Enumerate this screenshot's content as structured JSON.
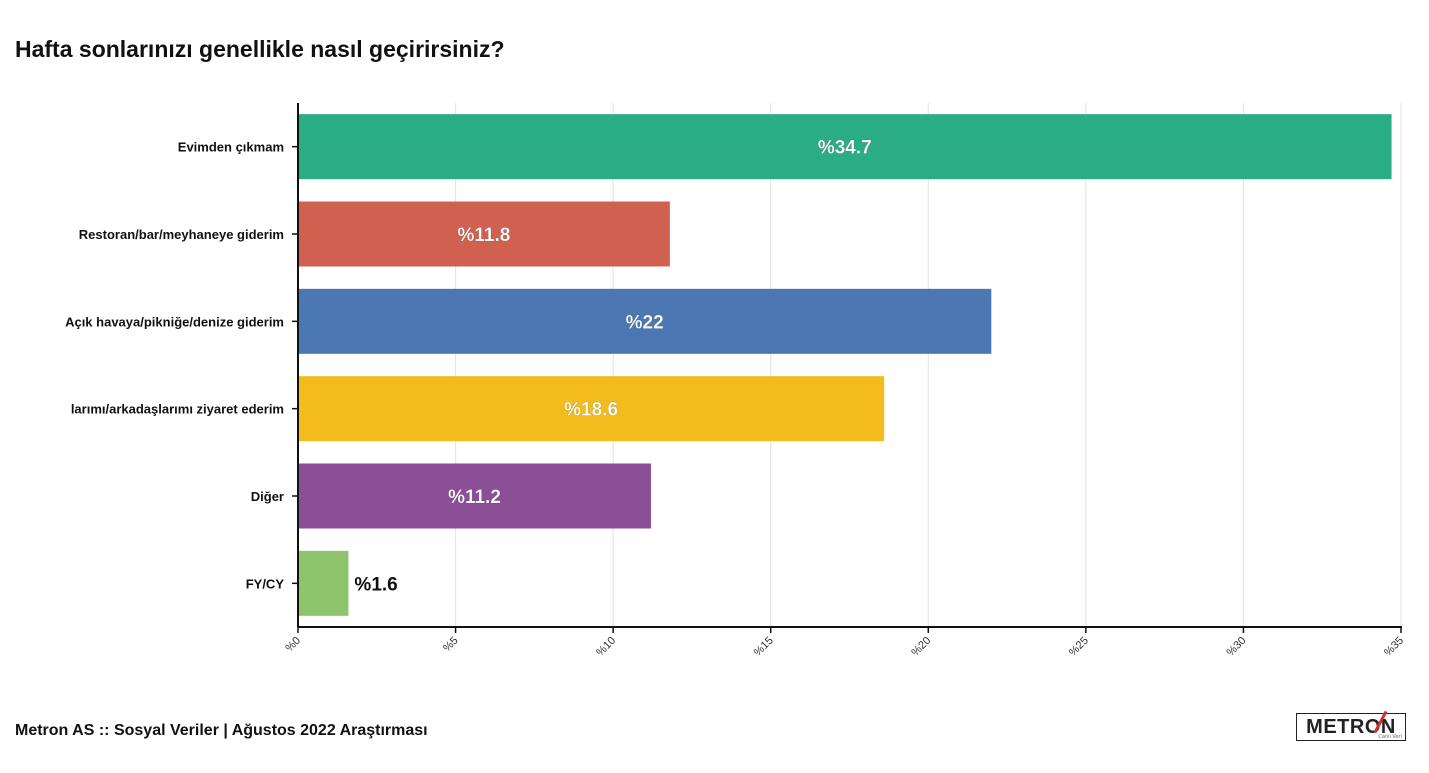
{
  "title": "Hafta sonlarınızı genellikle nasıl geçirirsiniz?",
  "footer": "Metron AS :: Sosyal Veriler | Ağustos 2022 Araştırması",
  "logo": {
    "text": "METRON",
    "sub": "Canlı Veri"
  },
  "colors": {
    "axis": "#111111",
    "grid": "#e6e6e6",
    "bar_label_light": "#ffffff",
    "bar_label_dark": "#111111"
  },
  "chart_data": {
    "type": "bar",
    "orientation": "horizontal",
    "title": "Hafta sonlarınızı genellikle nasıl geçirirsiniz?",
    "xlabel": "",
    "ylabel": "",
    "xlim": [
      0,
      35
    ],
    "x_ticks": [
      0,
      5,
      10,
      15,
      20,
      25,
      30,
      35
    ],
    "x_tick_labels": [
      "%0",
      "%5",
      "%10",
      "%15",
      "%20",
      "%25",
      "%30",
      "%35"
    ],
    "grid": true,
    "categories": [
      "Evimden çıkmam",
      "Restoran/bar/meyhaneye giderim",
      "Açık havaya/pikniğe/denize giderim",
      "larımı/arkadaşlarımı ziyaret ederim",
      "Diğer",
      "FY/CY"
    ],
    "values": [
      34.7,
      11.8,
      22,
      18.6,
      11.2,
      1.6
    ],
    "value_labels": [
      "%34.7",
      "%11.8",
      "%22",
      "%18.6",
      "%11.2",
      "%1.6"
    ],
    "bar_colors": [
      "#2aad84",
      "#d06150",
      "#4b78b2",
      "#f2bc1c",
      "#8a4f97",
      "#8ec46b"
    ]
  }
}
